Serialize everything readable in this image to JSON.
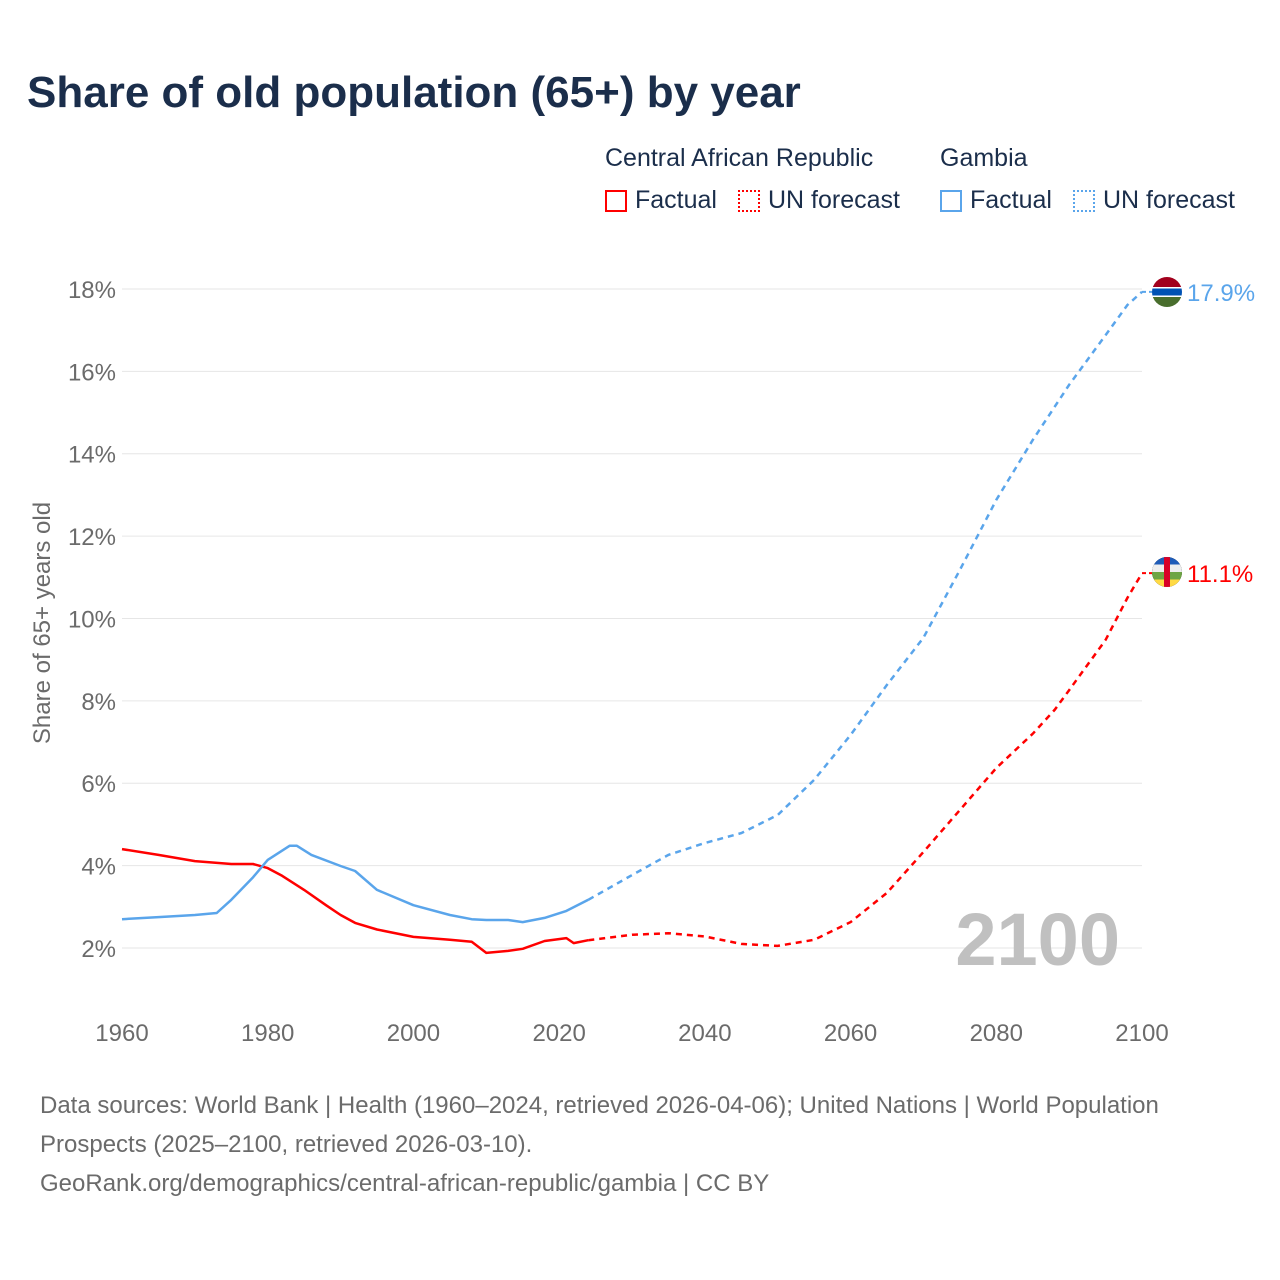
{
  "title": "Share of old population (65+) by year",
  "legend": {
    "groups": [
      {
        "name": "Central African Republic",
        "color": "#ff0000",
        "factual": "Factual",
        "forecast": "UN forecast"
      },
      {
        "name": "Gambia",
        "color": "#5aa5eb",
        "factual": "Factual",
        "forecast": "UN forecast"
      }
    ]
  },
  "chart_data": {
    "type": "line",
    "title": "Share of old population (65+) by year",
    "xlabel": "",
    "ylabel": "Share of 65+ years old",
    "xlim": [
      1960,
      2100
    ],
    "ylim": [
      1,
      18.5
    ],
    "x_ticks": [
      1960,
      1980,
      2000,
      2020,
      2040,
      2060,
      2080,
      2100
    ],
    "y_ticks": [
      2,
      4,
      6,
      8,
      10,
      12,
      14,
      16,
      18
    ],
    "y_tick_labels": [
      "2%",
      "4%",
      "6%",
      "8%",
      "10%",
      "12%",
      "14%",
      "16%",
      "18%"
    ],
    "grid": true,
    "year_watermark": "2100",
    "series": [
      {
        "name": "Central African Republic",
        "color": "#ff0000",
        "end_label": "11.1%",
        "factual": {
          "x": [
            1960,
            1965,
            1970,
            1975,
            1978,
            1980,
            1982,
            1985,
            1988,
            1990,
            1992,
            1995,
            2000,
            2005,
            2008,
            2010,
            2013,
            2015,
            2018,
            2021,
            2022,
            2024
          ],
          "y": [
            4.4,
            4.26,
            4.11,
            4.04,
            4.04,
            3.94,
            3.75,
            3.41,
            3.04,
            2.8,
            2.61,
            2.45,
            2.27,
            2.2,
            2.15,
            1.88,
            1.93,
            1.98,
            2.17,
            2.24,
            2.12,
            2.19
          ]
        },
        "forecast": {
          "x": [
            2024,
            2030,
            2035,
            2040,
            2045,
            2050,
            2055,
            2060,
            2065,
            2070,
            2075,
            2080,
            2085,
            2088,
            2090,
            2095,
            2098,
            2100
          ],
          "y": [
            2.19,
            2.32,
            2.36,
            2.28,
            2.1,
            2.05,
            2.2,
            2.63,
            3.34,
            4.33,
            5.35,
            6.37,
            7.2,
            7.78,
            8.26,
            9.48,
            10.5,
            11.1
          ]
        }
      },
      {
        "name": "Gambia",
        "color": "#5aa5eb",
        "end_label": "17.9%",
        "factual": {
          "x": [
            1960,
            1965,
            1970,
            1973,
            1975,
            1978,
            1980,
            1983,
            1984,
            1986,
            1990,
            1992,
            1995,
            2000,
            2005,
            2008,
            2010,
            2013,
            2015,
            2018,
            2021,
            2024
          ],
          "y": [
            2.7,
            2.75,
            2.8,
            2.85,
            3.17,
            3.72,
            4.14,
            4.48,
            4.48,
            4.26,
            3.99,
            3.87,
            3.41,
            3.04,
            2.8,
            2.7,
            2.68,
            2.68,
            2.63,
            2.73,
            2.9,
            3.17
          ]
        },
        "forecast": {
          "x": [
            2024,
            2030,
            2035,
            2040,
            2045,
            2050,
            2055,
            2060,
            2065,
            2070,
            2075,
            2080,
            2085,
            2090,
            2095,
            2098,
            2100
          ],
          "y": [
            3.17,
            3.77,
            4.26,
            4.55,
            4.79,
            5.23,
            6.08,
            7.17,
            8.39,
            9.53,
            11.18,
            12.88,
            14.33,
            15.67,
            16.88,
            17.61,
            17.93
          ]
        }
      }
    ]
  },
  "footer": {
    "sources": "Data sources: World Bank | Health (1960–2024, retrieved 2026-04-06); United Nations | World Population Prospects (2025–2100, retrieved 2026-03-10).",
    "link": "GeoRank.org/demographics/central-african-republic/gambia | CC BY"
  }
}
